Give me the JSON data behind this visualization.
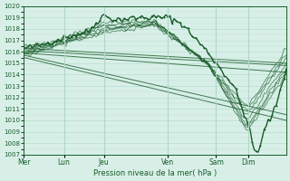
{
  "title": "",
  "xlabel": "Pression niveau de la mer( hPa )",
  "ylim": [
    1007,
    1020
  ],
  "yticks": [
    1007,
    1008,
    1009,
    1010,
    1011,
    1012,
    1013,
    1014,
    1015,
    1016,
    1017,
    1018,
    1019,
    1020
  ],
  "background_color": "#d8efe8",
  "grid_color": "#b0d8c8",
  "line_color": "#1a5c2a",
  "day_labels": [
    "Mer",
    "Lun",
    "Jeu",
    "Ven",
    "Sam",
    "Dim"
  ],
  "day_positions": [
    0,
    20,
    40,
    72,
    96,
    112
  ],
  "total_points": 132
}
